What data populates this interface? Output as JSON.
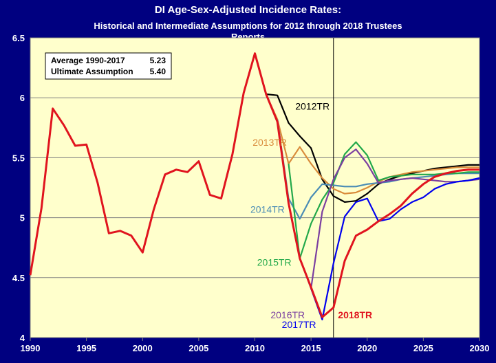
{
  "chart_data": {
    "type": "line",
    "title": "DI Age-Sex-Adjusted Incidence Rates:",
    "subtitle_line1": "Historical and Intermediate Assumptions for 2012 through 2018 Trustees",
    "subtitle_line2": "Reports",
    "xlim": [
      1990,
      2030
    ],
    "ylim": [
      4,
      6.5
    ],
    "x_ticks": [
      "1990",
      "1995",
      "2000",
      "2005",
      "2010",
      "2015",
      "2020",
      "2025",
      "2030"
    ],
    "y_ticks": [
      "4",
      "4.5",
      "5",
      "5.5",
      "6",
      "6.5"
    ],
    "grid": "horizontal",
    "vertical_marker_x": 2017,
    "legend_box": {
      "line1_label": "Average 1990-2017",
      "line1_value": "5.23",
      "line2_label": "Ultimate Assumption",
      "line2_value": "5.40"
    },
    "series": [
      {
        "name": "2012TR",
        "color": "#000000",
        "x": [
          2010,
          2011,
          2012,
          2013,
          2014,
          2015,
          2016,
          2017,
          2018,
          2019,
          2020,
          2021,
          2022,
          2023,
          2024,
          2025,
          2026,
          2027,
          2028,
          2029,
          2030
        ],
        "values": [
          6.37,
          6.03,
          6.02,
          5.79,
          5.68,
          5.58,
          5.32,
          5.18,
          5.13,
          5.14,
          5.2,
          5.28,
          5.32,
          5.35,
          5.37,
          5.39,
          5.41,
          5.42,
          5.43,
          5.44,
          5.44
        ]
      },
      {
        "name": "2013TR",
        "color": "#d98b3a",
        "x": [
          2011,
          2012,
          2013,
          2014,
          2015,
          2016,
          2017,
          2018,
          2019,
          2020,
          2021,
          2022,
          2023,
          2024,
          2025,
          2026,
          2027,
          2028,
          2029,
          2030
        ],
        "values": [
          6.03,
          5.82,
          5.45,
          5.59,
          5.45,
          5.33,
          5.24,
          5.2,
          5.21,
          5.25,
          5.3,
          5.34,
          5.36,
          5.38,
          5.39,
          5.4,
          5.41,
          5.42,
          5.42,
          5.42
        ]
      },
      {
        "name": "2014TR",
        "color": "#4a8cb5",
        "x": [
          2012,
          2013,
          2014,
          2015,
          2016,
          2017,
          2018,
          2019,
          2020,
          2021,
          2022,
          2023,
          2024,
          2025,
          2026,
          2027,
          2028,
          2029,
          2030
        ],
        "values": [
          5.82,
          5.16,
          4.99,
          5.17,
          5.28,
          5.27,
          5.26,
          5.26,
          5.28,
          5.29,
          5.3,
          5.32,
          5.33,
          5.34,
          5.35,
          5.36,
          5.37,
          5.37,
          5.37
        ]
      },
      {
        "name": "2015TR",
        "color": "#22a84a",
        "x": [
          2013,
          2014,
          2015,
          2016,
          2017,
          2018,
          2019,
          2020,
          2021,
          2022,
          2023,
          2024,
          2025,
          2026,
          2027,
          2028,
          2029,
          2030
        ],
        "values": [
          5.45,
          4.66,
          4.95,
          5.15,
          5.29,
          5.53,
          5.63,
          5.52,
          5.31,
          5.34,
          5.35,
          5.36,
          5.36,
          5.36,
          5.37,
          5.37,
          5.38,
          5.38
        ]
      },
      {
        "name": "2016TR",
        "color": "#7b3fa0",
        "x": [
          2014,
          2015,
          2016,
          2017,
          2018,
          2019,
          2020,
          2021,
          2022,
          2023,
          2024,
          2025,
          2026,
          2027,
          2028,
          2029,
          2030
        ],
        "values": [
          4.66,
          4.41,
          5.05,
          5.32,
          5.5,
          5.57,
          5.45,
          5.29,
          5.31,
          5.32,
          5.33,
          5.32,
          5.31,
          5.3,
          5.3,
          5.31,
          5.32
        ]
      },
      {
        "name": "2017TR",
        "color": "#0000ee",
        "x": [
          2015,
          2016,
          2017,
          2018,
          2019,
          2020,
          2021,
          2022,
          2023,
          2024,
          2025,
          2026,
          2027,
          2028,
          2029,
          2030
        ],
        "values": [
          4.41,
          4.15,
          4.62,
          5.01,
          5.13,
          5.16,
          4.97,
          4.99,
          5.07,
          5.13,
          5.17,
          5.24,
          5.28,
          5.3,
          5.31,
          5.33
        ]
      },
      {
        "name": "2018TR",
        "color": "#e0141e",
        "x": [
          1990,
          1991,
          1992,
          1993,
          1994,
          1995,
          1996,
          1997,
          1998,
          1999,
          2000,
          2001,
          2002,
          2003,
          2004,
          2005,
          2006,
          2007,
          2008,
          2009,
          2010,
          2011,
          2012,
          2013,
          2014,
          2015,
          2016,
          2017,
          2018,
          2019,
          2020,
          2021,
          2022,
          2023,
          2024,
          2025,
          2026,
          2027,
          2028,
          2029,
          2030
        ],
        "values": [
          4.52,
          5.08,
          5.91,
          5.77,
          5.6,
          5.61,
          5.29,
          4.87,
          4.89,
          4.85,
          4.71,
          5.07,
          5.36,
          5.4,
          5.38,
          5.47,
          5.19,
          5.16,
          5.53,
          6.04,
          6.37,
          6.03,
          5.8,
          5.12,
          4.66,
          4.42,
          4.17,
          4.25,
          4.64,
          4.85,
          4.9,
          4.97,
          5.03,
          5.1,
          5.2,
          5.28,
          5.34,
          5.37,
          5.39,
          5.4,
          5.4
        ]
      }
    ],
    "series_labels": [
      {
        "text": "2012TR",
        "color": "#000000",
        "at_x": 2013.6,
        "at_y": 5.9,
        "bold": false
      },
      {
        "text": "2013TR",
        "color": "#d98b3a",
        "at_x": 2009.8,
        "at_y": 5.6,
        "bold": false
      },
      {
        "text": "2014TR",
        "color": "#4a8cb5",
        "at_x": 2009.6,
        "at_y": 5.04,
        "bold": false
      },
      {
        "text": "2015TR",
        "color": "#22a84a",
        "at_x": 2010.2,
        "at_y": 4.6,
        "bold": false
      },
      {
        "text": "2016TR",
        "color": "#7b3fa0",
        "at_x": 2011.4,
        "at_y": 4.16,
        "bold": false
      },
      {
        "text": "2017TR",
        "color": "#0000ee",
        "at_x": 2012.4,
        "at_y": 4.08,
        "bold": false
      },
      {
        "text": "2018TR",
        "color": "#e0141e",
        "at_x": 2017.4,
        "at_y": 4.16,
        "bold": true
      }
    ]
  }
}
